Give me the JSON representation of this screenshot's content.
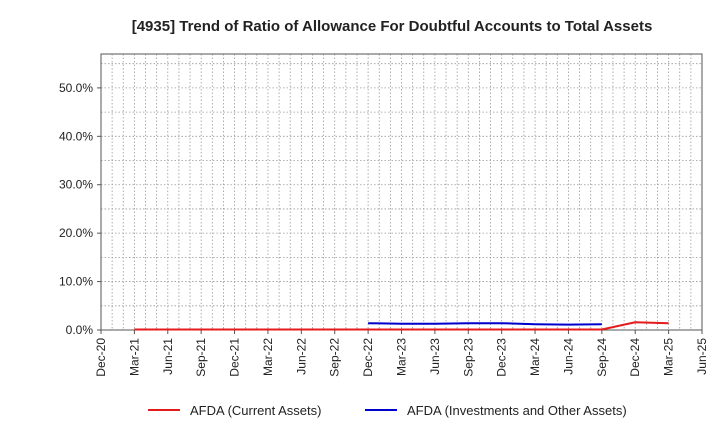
{
  "chart_data": {
    "type": "line",
    "title": "[4935]  Trend of Ratio of Allowance For Doubtful Accounts to Total Assets",
    "xlabel": "",
    "ylabel": "",
    "x_ticks": [
      "Dec-20",
      "Mar-21",
      "Jun-21",
      "Sep-21",
      "Dec-21",
      "Mar-22",
      "Jun-22",
      "Sep-22",
      "Dec-22",
      "Mar-23",
      "Jun-23",
      "Sep-23",
      "Dec-23",
      "Mar-24",
      "Jun-24",
      "Sep-24",
      "Dec-24",
      "Mar-25",
      "Jun-25"
    ],
    "y_ticks": [
      {
        "value": 0,
        "label": "0.0%"
      },
      {
        "value": 10,
        "label": "10.0%"
      },
      {
        "value": 20,
        "label": "20.0%"
      },
      {
        "value": 30,
        "label": "30.0%"
      },
      {
        "value": 40,
        "label": "40.0%"
      },
      {
        "value": 50,
        "label": "50.0%"
      }
    ],
    "ylim": [
      0,
      57
    ],
    "y_unit": "%",
    "grid": true,
    "legend_position": "bottom",
    "series": [
      {
        "name": "AFDA (Current Assets)",
        "color": "#e41a1c",
        "x": [
          "Mar-21",
          "Jun-21",
          "Sep-21",
          "Dec-21",
          "Mar-22",
          "Jun-22",
          "Sep-22",
          "Dec-22",
          "Mar-23",
          "Jun-23",
          "Sep-23",
          "Dec-23",
          "Mar-24",
          "Jun-24",
          "Sep-24",
          "Dec-24",
          "Mar-25"
        ],
        "values": [
          0.1,
          0.1,
          0.1,
          0.1,
          0.1,
          0.1,
          0.1,
          0.1,
          0.1,
          0.1,
          0.1,
          0.1,
          0.1,
          0.1,
          0.1,
          1.6,
          1.4
        ]
      },
      {
        "name": "AFDA (Investments and Other Assets)",
        "color": "#0000cc",
        "x": [
          "Dec-22",
          "Mar-23",
          "Jun-23",
          "Sep-23",
          "Dec-23",
          "Mar-24",
          "Jun-24",
          "Sep-24"
        ],
        "values": [
          1.4,
          1.3,
          1.3,
          1.4,
          1.4,
          1.2,
          1.1,
          1.2
        ]
      }
    ]
  }
}
